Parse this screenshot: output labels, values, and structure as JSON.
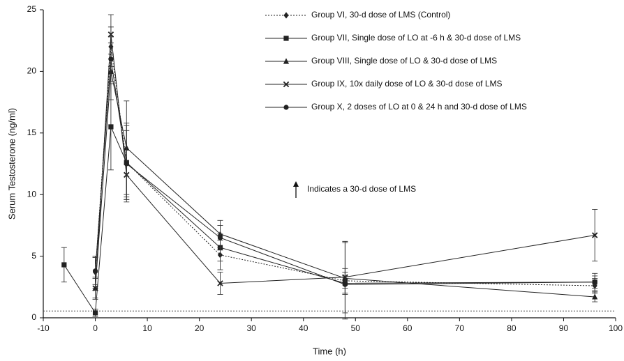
{
  "chart_data": {
    "type": "line",
    "x_label": "Time (h)",
    "y_label": "Serum Testosterone (ng/ml)",
    "xlim": [
      -10,
      100
    ],
    "xticks": [
      -10,
      0,
      10,
      20,
      30,
      40,
      50,
      60,
      70,
      80,
      90,
      100
    ],
    "ylim": [
      0,
      25
    ],
    "yticks": [
      0,
      5,
      10,
      15,
      20,
      25
    ],
    "reference_line": 0.55,
    "annotation": "Indicates a 30-d dose of LMS",
    "series": [
      {
        "name": "Group VI, 30-d dose of LMS  (Control)",
        "color": "#222",
        "marker": "diamond",
        "line_style": "dotted",
        "x": [
          0,
          3,
          6,
          24,
          48,
          96
        ],
        "values": [
          3.7,
          22.0,
          12.6,
          5.1,
          3.0,
          2.6
        ],
        "errors": [
          1.3,
          1.6,
          3.2,
          1.2,
          3.1,
          0.6
        ]
      },
      {
        "name": "Group VII, Single dose of LO at -6 h & 30-d dose of LMS",
        "color": "#222",
        "marker": "square",
        "line_style": "solid",
        "x": [
          -6,
          0,
          3,
          6,
          24,
          48,
          96
        ],
        "values": [
          4.3,
          0.4,
          15.5,
          12.6,
          5.7,
          2.8,
          2.9
        ],
        "errors": [
          1.4,
          0.3,
          3.5,
          3.0,
          1.1,
          0.9,
          0.5
        ]
      },
      {
        "name": "Group VIII, Single dose of LO & 30-d dose of LMS",
        "color": "#222",
        "marker": "triangle",
        "line_style": "solid",
        "x": [
          0,
          3,
          6,
          24,
          48,
          96
        ],
        "values": [
          2.4,
          20.0,
          13.8,
          6.8,
          3.2,
          1.7
        ],
        "errors": [
          0.8,
          2.3,
          3.8,
          1.1,
          0.8,
          0.4
        ]
      },
      {
        "name": "Group IX, 10x daily dose of LO & 30-d dose of LMS",
        "color": "#222",
        "marker": "x",
        "line_style": "solid",
        "x": [
          0,
          3,
          6,
          24,
          48,
          96
        ],
        "values": [
          2.4,
          23.0,
          11.6,
          2.8,
          3.3,
          6.7
        ],
        "errors": [
          0.9,
          1.6,
          2.0,
          0.9,
          2.9,
          2.1
        ]
      },
      {
        "name": "Group X, 2 doses of LO at 0 & 24 h and 30-d dose of LMS",
        "color": "#222",
        "marker": "circle",
        "line_style": "solid",
        "x": [
          0,
          3,
          6,
          24,
          48,
          96
        ],
        "values": [
          3.8,
          21.0,
          12.5,
          6.5,
          2.7,
          2.9
        ],
        "errors": [
          1.1,
          1.8,
          2.7,
          1.0,
          0.7,
          0.7
        ]
      }
    ]
  }
}
